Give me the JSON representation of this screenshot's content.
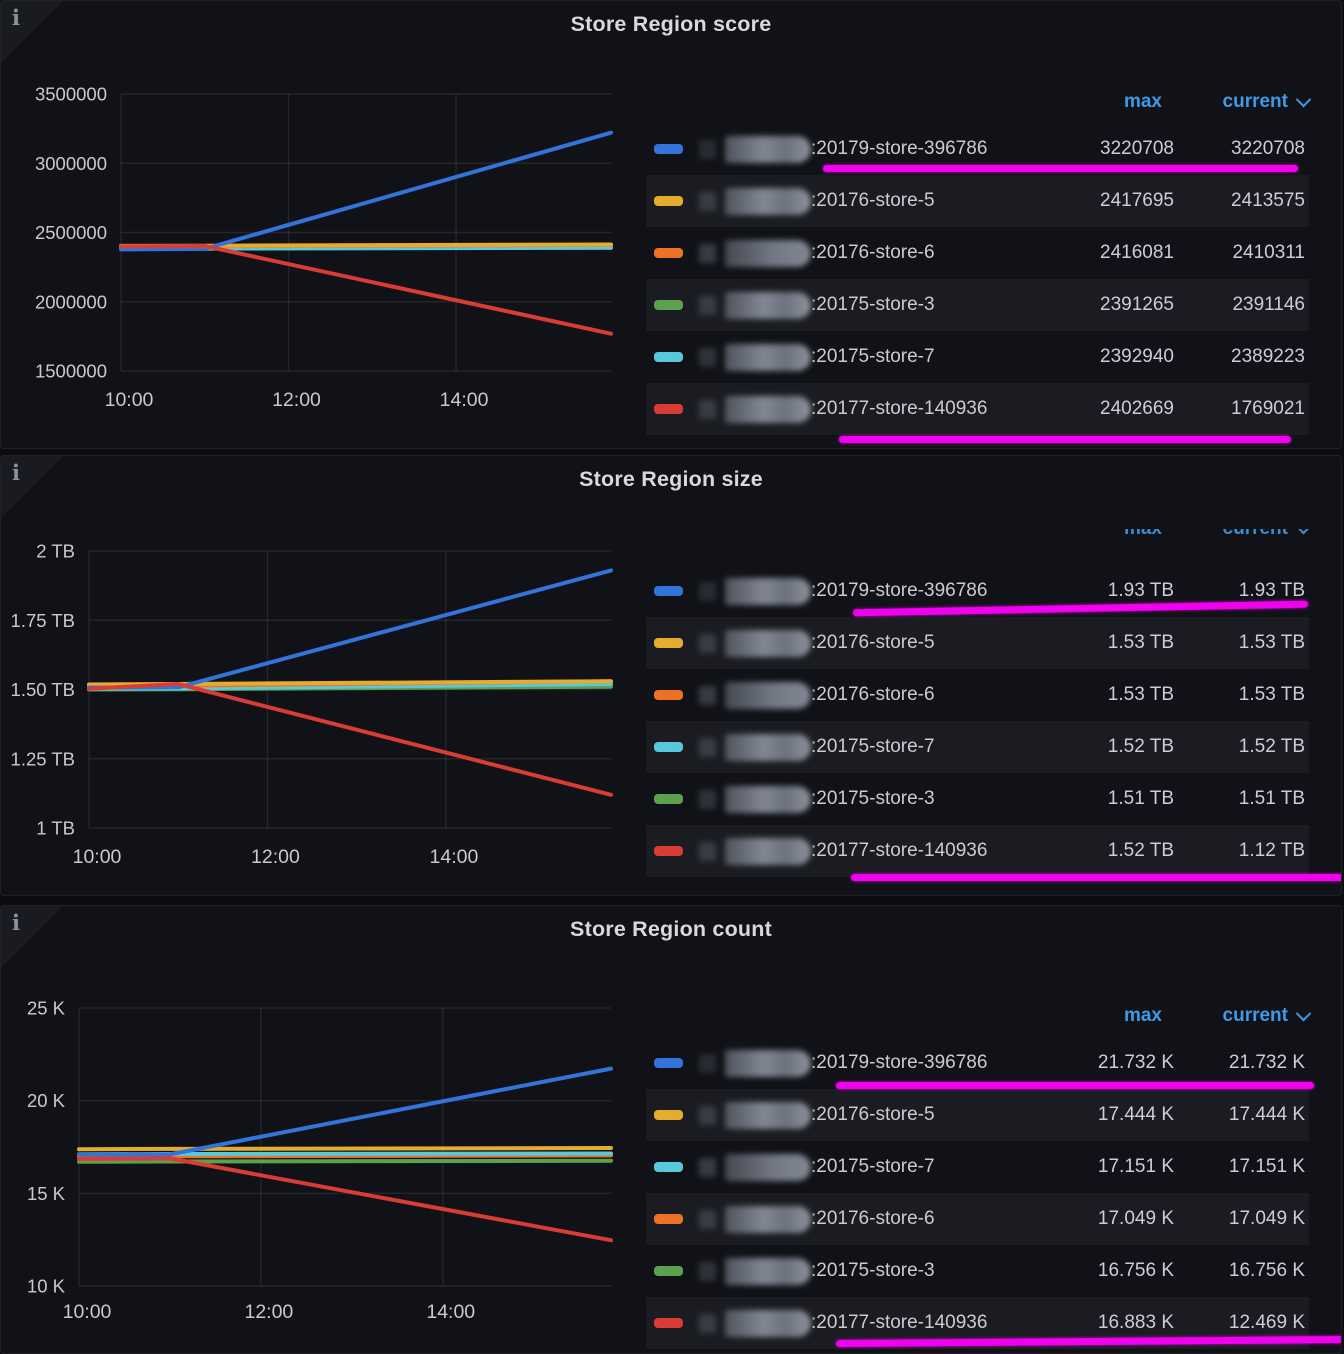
{
  "colors": {
    "series": {
      "blue": "#3274d9",
      "yellow": "#e5ac2e",
      "orange": "#ed7224",
      "green": "#5ca14e",
      "cyan": "#58c8dd",
      "red": "#d93b35"
    },
    "link_blue": "#3d9ae8",
    "highlight_marker": "#ef00ef",
    "panel_bg": "#111217",
    "grid": "rgba(204,204,220,0.10)"
  },
  "icons": {
    "panel_info": "i",
    "sort_chevron": "chevron-down"
  },
  "panels": [
    {
      "title": "Store Region score",
      "legend": {
        "max_label": "max",
        "current_label": "current",
        "rows": [
          {
            "color": "blue",
            "label": ":20179-store-396786",
            "max": "3220708",
            "current": "3220708",
            "highlight": true
          },
          {
            "color": "yellow",
            "label": ":20176-store-5",
            "max": "2417695",
            "current": "2413575"
          },
          {
            "color": "orange",
            "label": ":20176-store-6",
            "max": "2416081",
            "current": "2410311"
          },
          {
            "color": "green",
            "label": ":20175-store-3",
            "max": "2391265",
            "current": "2391146"
          },
          {
            "color": "cyan",
            "label": ":20175-store-7",
            "max": "2392940",
            "current": "2389223"
          },
          {
            "color": "red",
            "label": ":20177-store-140936",
            "max": "2402669",
            "current": "1769021",
            "highlight": true
          }
        ]
      },
      "chart_data": {
        "type": "line",
        "title": "Store Region score",
        "x_domain": [
          10,
          15.85
        ],
        "x_ticks": [
          {
            "t": 10,
            "label": "10:00"
          },
          {
            "t": 12,
            "label": "12:00"
          },
          {
            "t": 14,
            "label": "14:00"
          }
        ],
        "y_domain": [
          1500000,
          3500000
        ],
        "y_ticks": [
          {
            "v": 3500000,
            "label": "3500000"
          },
          {
            "v": 3000000,
            "label": "3000000"
          },
          {
            "v": 2500000,
            "label": "2500000"
          },
          {
            "v": 2000000,
            "label": "2000000"
          },
          {
            "v": 1500000,
            "label": "1500000"
          }
        ],
        "grid": true,
        "legend_position": "right-table",
        "series": [
          {
            "name": ":20175-store-3",
            "color": "green",
            "points": [
              [
                10,
                2388000
              ],
              [
                11,
                2389000
              ],
              [
                15.85,
                2391146
              ]
            ]
          },
          {
            "name": ":20175-store-7",
            "color": "cyan",
            "points": [
              [
                10,
                2382000
              ],
              [
                11,
                2384000
              ],
              [
                15.85,
                2389223
              ]
            ]
          },
          {
            "name": ":20176-store-6",
            "color": "orange",
            "points": [
              [
                10,
                2398000
              ],
              [
                11,
                2401000
              ],
              [
                15.85,
                2410311
              ]
            ]
          },
          {
            "name": ":20176-store-5",
            "color": "yellow",
            "points": [
              [
                10,
                2403000
              ],
              [
                11,
                2405000
              ],
              [
                15.85,
                2413575
              ]
            ]
          },
          {
            "name": ":20179-store-396786",
            "color": "blue",
            "points": [
              [
                10,
                2378000
              ],
              [
                11,
                2382000
              ],
              [
                15.85,
                3220708
              ]
            ]
          },
          {
            "name": ":20177-store-140936",
            "color": "red",
            "points": [
              [
                10,
                2400000
              ],
              [
                11,
                2402669
              ],
              [
                15.85,
                1769021
              ]
            ]
          }
        ]
      }
    },
    {
      "title": "Store Region size",
      "legend": {
        "max_label": "max",
        "current_label": "current",
        "rows": [
          {
            "color": "blue",
            "label": ":20179-store-396786",
            "max": "1.93 TB",
            "current": "1.93 TB",
            "highlight": true
          },
          {
            "color": "yellow",
            "label": ":20176-store-5",
            "max": "1.53 TB",
            "current": "1.53 TB"
          },
          {
            "color": "orange",
            "label": ":20176-store-6",
            "max": "1.53 TB",
            "current": "1.53 TB"
          },
          {
            "color": "cyan",
            "label": ":20175-store-7",
            "max": "1.52 TB",
            "current": "1.52 TB"
          },
          {
            "color": "green",
            "label": ":20175-store-3",
            "max": "1.51 TB",
            "current": "1.51 TB"
          },
          {
            "color": "red",
            "label": ":20177-store-140936",
            "max": "1.52 TB",
            "current": "1.12 TB",
            "highlight": true
          }
        ]
      },
      "chart_data": {
        "type": "line",
        "title": "Store Region size",
        "x_domain": [
          10,
          15.85
        ],
        "x_ticks": [
          {
            "t": 10,
            "label": "10:00"
          },
          {
            "t": 12,
            "label": "12:00"
          },
          {
            "t": 14,
            "label": "14:00"
          }
        ],
        "y_domain": [
          1,
          2
        ],
        "y_ticks": [
          {
            "v": 2,
            "label": "2 TB"
          },
          {
            "v": 1.75,
            "label": "1.75 TB"
          },
          {
            "v": 1.5,
            "label": "1.50 TB"
          },
          {
            "v": 1.25,
            "label": "1.25 TB"
          },
          {
            "v": 1,
            "label": "1 TB"
          }
        ],
        "grid": true,
        "legend_position": "right-table",
        "series": [
          {
            "name": ":20175-store-3",
            "color": "green",
            "points": [
              [
                10,
                1.5
              ],
              [
                11,
                1.501
              ],
              [
                15.85,
                1.51
              ]
            ]
          },
          {
            "name": ":20175-store-7",
            "color": "cyan",
            "points": [
              [
                10,
                1.503
              ],
              [
                11,
                1.504
              ],
              [
                15.85,
                1.52
              ]
            ]
          },
          {
            "name": ":20176-store-6",
            "color": "orange",
            "points": [
              [
                10,
                1.512
              ],
              [
                11,
                1.514
              ],
              [
                15.85,
                1.53
              ]
            ]
          },
          {
            "name": ":20176-store-5",
            "color": "yellow",
            "points": [
              [
                10,
                1.518
              ],
              [
                11,
                1.52
              ],
              [
                15.85,
                1.53
              ]
            ]
          },
          {
            "name": ":20179-store-396786",
            "color": "blue",
            "points": [
              [
                10,
                1.507
              ],
              [
                11,
                1.508
              ],
              [
                15.85,
                1.93
              ]
            ]
          },
          {
            "name": ":20177-store-140936",
            "color": "red",
            "points": [
              [
                10,
                1.503
              ],
              [
                11,
                1.52
              ],
              [
                15.85,
                1.12
              ]
            ]
          }
        ]
      }
    },
    {
      "title": "Store Region count",
      "legend": {
        "max_label": "max",
        "current_label": "current",
        "rows": [
          {
            "color": "blue",
            "label": ":20179-store-396786",
            "max": "21.732 K",
            "current": "21.732 K",
            "highlight": true
          },
          {
            "color": "yellow",
            "label": ":20176-store-5",
            "max": "17.444 K",
            "current": "17.444 K"
          },
          {
            "color": "cyan",
            "label": ":20175-store-7",
            "max": "17.151 K",
            "current": "17.151 K"
          },
          {
            "color": "orange",
            "label": ":20176-store-6",
            "max": "17.049 K",
            "current": "17.049 K"
          },
          {
            "color": "green",
            "label": ":20175-store-3",
            "max": "16.756 K",
            "current": "16.756 K"
          },
          {
            "color": "red",
            "label": ":20177-store-140936",
            "max": "16.883 K",
            "current": "12.469 K",
            "highlight": true
          }
        ]
      },
      "chart_data": {
        "type": "line",
        "title": "Store Region count",
        "x_domain": [
          10,
          15.85
        ],
        "x_ticks": [
          {
            "t": 10,
            "label": "10:00"
          },
          {
            "t": 12,
            "label": "12:00"
          },
          {
            "t": 14,
            "label": "14:00"
          }
        ],
        "y_domain": [
          10,
          25
        ],
        "y_ticks": [
          {
            "v": 25,
            "label": "25 K"
          },
          {
            "v": 20,
            "label": "20 K"
          },
          {
            "v": 15,
            "label": "15 K"
          },
          {
            "v": 10,
            "label": "10 K"
          }
        ],
        "grid": true,
        "legend_position": "right-table",
        "series": [
          {
            "name": ":20175-store-3",
            "color": "green",
            "points": [
              [
                10,
                16.7
              ],
              [
                11,
                16.72
              ],
              [
                15.85,
                16.756
              ]
            ]
          },
          {
            "name": ":20176-store-6",
            "color": "orange",
            "points": [
              [
                10,
                16.98
              ],
              [
                11,
                17.0
              ],
              [
                15.85,
                17.049
              ]
            ]
          },
          {
            "name": ":20175-store-7",
            "color": "cyan",
            "points": [
              [
                10,
                17.1
              ],
              [
                11,
                17.12
              ],
              [
                15.85,
                17.151
              ]
            ]
          },
          {
            "name": ":20176-store-5",
            "color": "yellow",
            "points": [
              [
                10,
                17.38
              ],
              [
                11,
                17.4
              ],
              [
                15.85,
                17.444
              ]
            ]
          },
          {
            "name": ":20179-store-396786",
            "color": "blue",
            "points": [
              [
                10,
                17.08
              ],
              [
                11,
                17.1
              ],
              [
                15.85,
                21.732
              ]
            ]
          },
          {
            "name": ":20177-store-140936",
            "color": "red",
            "points": [
              [
                10,
                16.86
              ],
              [
                11,
                16.883
              ],
              [
                15.85,
                12.469
              ]
            ]
          }
        ]
      }
    }
  ]
}
